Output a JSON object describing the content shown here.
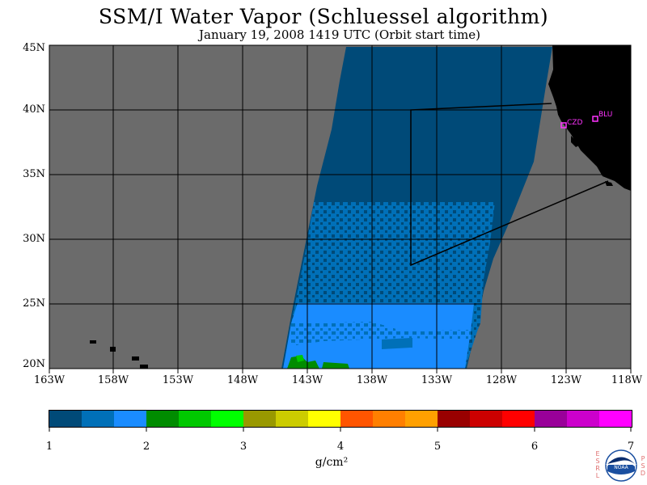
{
  "title": "SSM/I Water Vapor (Schluessel algorithm)",
  "subtitle": "January 19, 2008  1419 UTC  (Orbit start time)",
  "lat_labels": [
    "45N",
    "40N",
    "35N",
    "30N",
    "25N",
    "20N"
  ],
  "lon_labels": [
    "163W",
    "158W",
    "153W",
    "148W",
    "143W",
    "138W",
    "133W",
    "128W",
    "123W",
    "118W"
  ],
  "stations": [
    {
      "name": "CZD"
    },
    {
      "name": "BLU"
    }
  ],
  "colorbar": {
    "colors": [
      "#004a78",
      "#0070b8",
      "#1a8cff",
      "#008c00",
      "#00c800",
      "#00ff00",
      "#999900",
      "#cccc00",
      "#ffff00",
      "#ff5500",
      "#ff7f00",
      "#ffa000",
      "#990000",
      "#cc0000",
      "#ff0000",
      "#990099",
      "#cc00cc",
      "#ff00ff"
    ],
    "ticks": [
      "1",
      "2",
      "3",
      "4",
      "5",
      "6",
      "7"
    ],
    "units": "g/cm²"
  },
  "logo": {
    "left_text": "ESRL",
    "right_text": "PSD",
    "center_text": "NOAA"
  },
  "colors": {
    "no_data": "#6b6b6b",
    "land": "#000000",
    "vapor_1_1.33": "#004a78",
    "vapor_1.33_1.67": "#0070b8",
    "vapor_1.67_2": "#1a8cff",
    "vapor_2_2.33": "#008c00"
  }
}
